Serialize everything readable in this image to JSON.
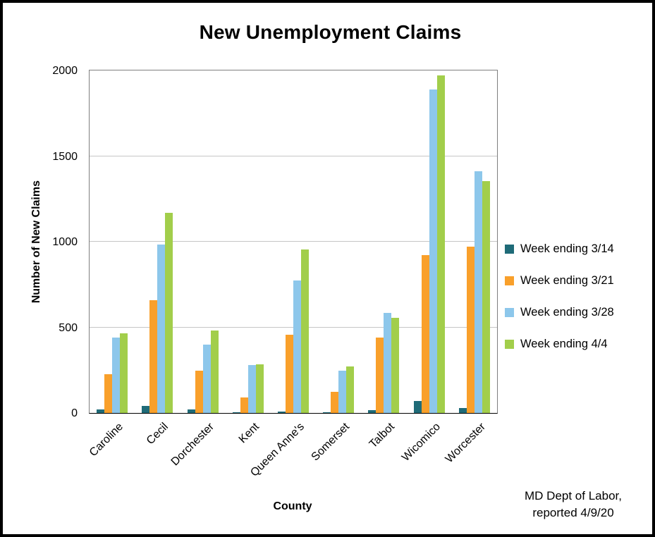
{
  "chart_data": {
    "type": "bar",
    "title": "New Unemployment Claims",
    "xlabel": "County",
    "ylabel": "Number of New Claims",
    "ylim": [
      0,
      2000
    ],
    "yticks": [
      0,
      500,
      1000,
      1500,
      2000
    ],
    "grid": true,
    "legend_position": "right",
    "categories": [
      "Caroline",
      "Cecil",
      "Dorchester",
      "Kent",
      "Queen Anne's",
      "Somerset",
      "Talbot",
      "Wicomico",
      "Worcester"
    ],
    "series": [
      {
        "name": "Week ending 3/14",
        "color": "#1f6b78",
        "values": [
          20,
          40,
          20,
          5,
          10,
          5,
          15,
          70,
          30
        ]
      },
      {
        "name": "Week ending 3/21",
        "color": "#f9a02b",
        "values": [
          225,
          660,
          245,
          90,
          455,
          125,
          440,
          920,
          970
        ]
      },
      {
        "name": "Week ending 3/28",
        "color": "#8dc7eb",
        "values": [
          440,
          985,
          400,
          280,
          775,
          245,
          585,
          1890,
          1410
        ]
      },
      {
        "name": "Week ending 4/4",
        "color": "#a2ce4b",
        "values": [
          465,
          1170,
          480,
          285,
          955,
          270,
          555,
          1970,
          1355
        ]
      }
    ]
  },
  "source_note": {
    "line1": "MD Dept of Labor,",
    "line2": "reported 4/9/20"
  }
}
